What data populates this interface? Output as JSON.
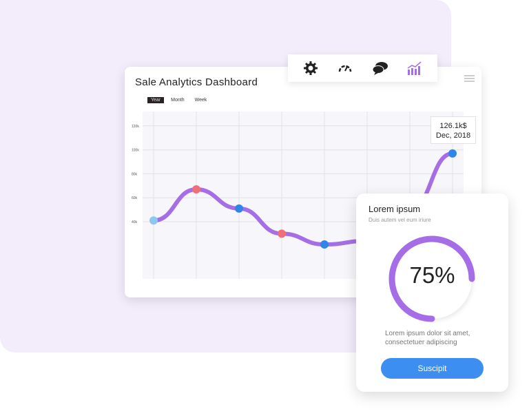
{
  "dashboard": {
    "title": "Sale Analytics Dashboard",
    "filters": [
      "Year",
      "Month",
      "Week"
    ],
    "active_filter": "Year"
  },
  "toolbar": {
    "icons": [
      "gear-icon",
      "speedometer-icon",
      "chat-bubbles-icon",
      "bar-chart-icon"
    ],
    "active_color": "#a66ee6"
  },
  "chart_data": {
    "type": "line",
    "ylim": [
      20,
      130
    ],
    "y_ticks": [
      "120k",
      "100k",
      "80k",
      "60k",
      "40k"
    ],
    "y_tick_values": [
      120,
      100,
      80,
      60,
      40
    ],
    "x": [
      0,
      1,
      2,
      3,
      4,
      5,
      6,
      7
    ],
    "values": [
      41,
      67,
      51,
      30,
      21,
      24,
      50,
      97
    ],
    "point_colors": [
      "#8fc8ee",
      "#ef6f78",
      "#2f86e6",
      "#ef6f78",
      "#2f86e6",
      "#2f86e6",
      "#2f86e6",
      "#2f86e6"
    ],
    "line_color": "#a66ee6",
    "tooltip": {
      "value": "126.1k$",
      "date": "Dec, 2018"
    }
  },
  "card": {
    "title": "Lorem ipsum",
    "subtitle": "Duis autem vel eum iriure",
    "percent": 75,
    "percent_label": "75%",
    "description_line1": "Lorem ipsum dolor sit amet,",
    "description_line2": "consectetuer adipiscing",
    "button": "Suscipit"
  }
}
